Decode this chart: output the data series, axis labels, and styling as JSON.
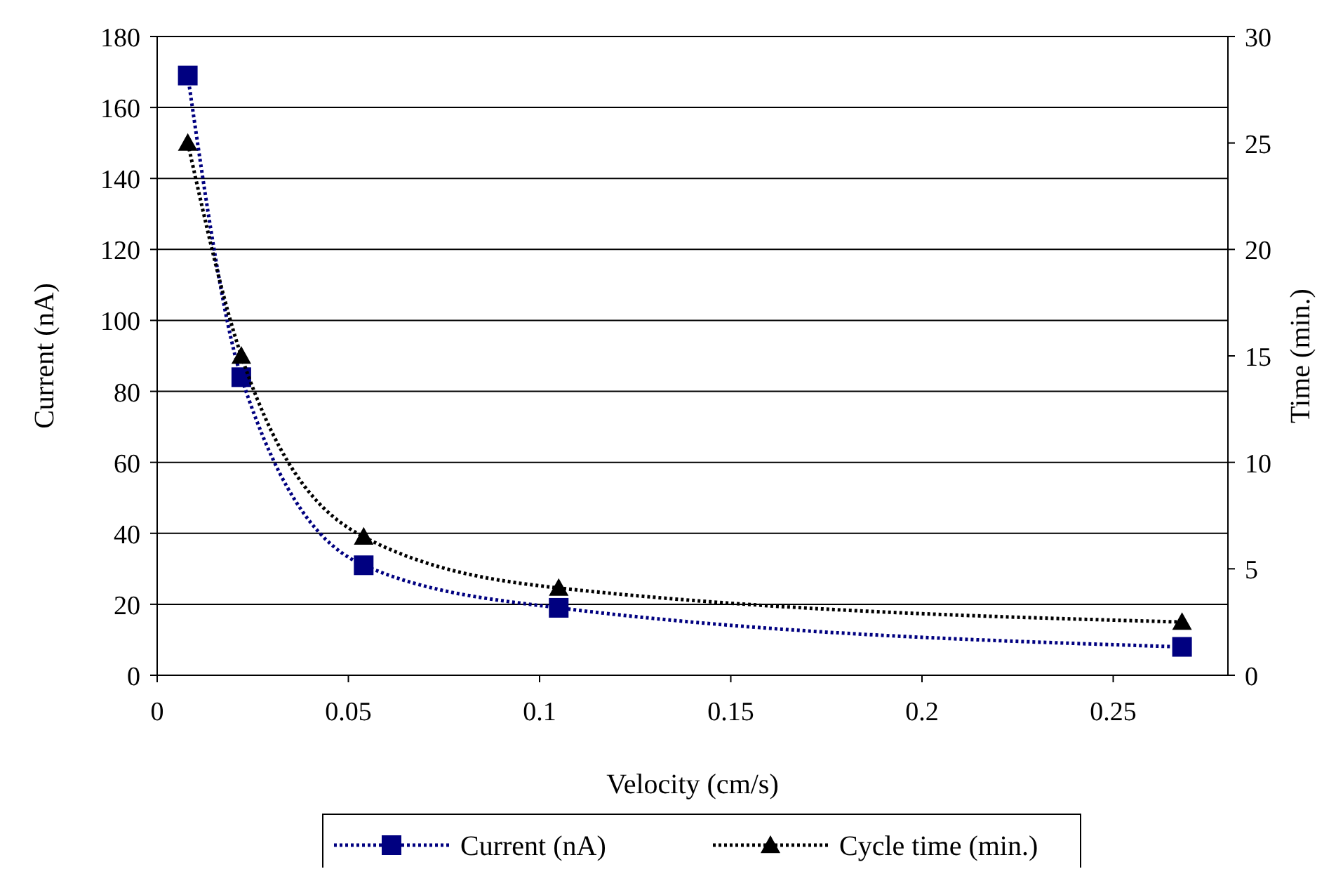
{
  "chart_data": {
    "type": "line",
    "xlabel": "Velocity (cm/s)",
    "ylabel": "Current (nA)",
    "y2label": "Time (min.)",
    "xlim": [
      0,
      0.28
    ],
    "xticks": [
      0,
      0.05,
      0.1,
      0.15,
      0.2,
      0.25
    ],
    "ylim": [
      0,
      180
    ],
    "yticks": [
      0,
      20,
      40,
      60,
      80,
      100,
      120,
      140,
      160,
      180
    ],
    "y2lim": [
      0,
      30
    ],
    "y2ticks": [
      0,
      5,
      10,
      15,
      20,
      25,
      30
    ],
    "grid": "y",
    "legend": "bottom",
    "line_style": "dotted",
    "series": [
      {
        "name": "Current (nA)",
        "color": "#000080",
        "marker": "square",
        "x": [
          0.008,
          0.022,
          0.054,
          0.105,
          0.268
        ],
        "values": [
          169,
          84,
          31,
          19,
          8
        ]
      },
      {
        "name": "Cycle time (min.)",
        "color": "#000000",
        "marker": "triangle",
        "axis": "y2",
        "x": [
          0.008,
          0.022,
          0.054,
          0.105,
          0.268
        ],
        "values": [
          25,
          15,
          6.5,
          4.1,
          2.5
        ]
      }
    ]
  }
}
